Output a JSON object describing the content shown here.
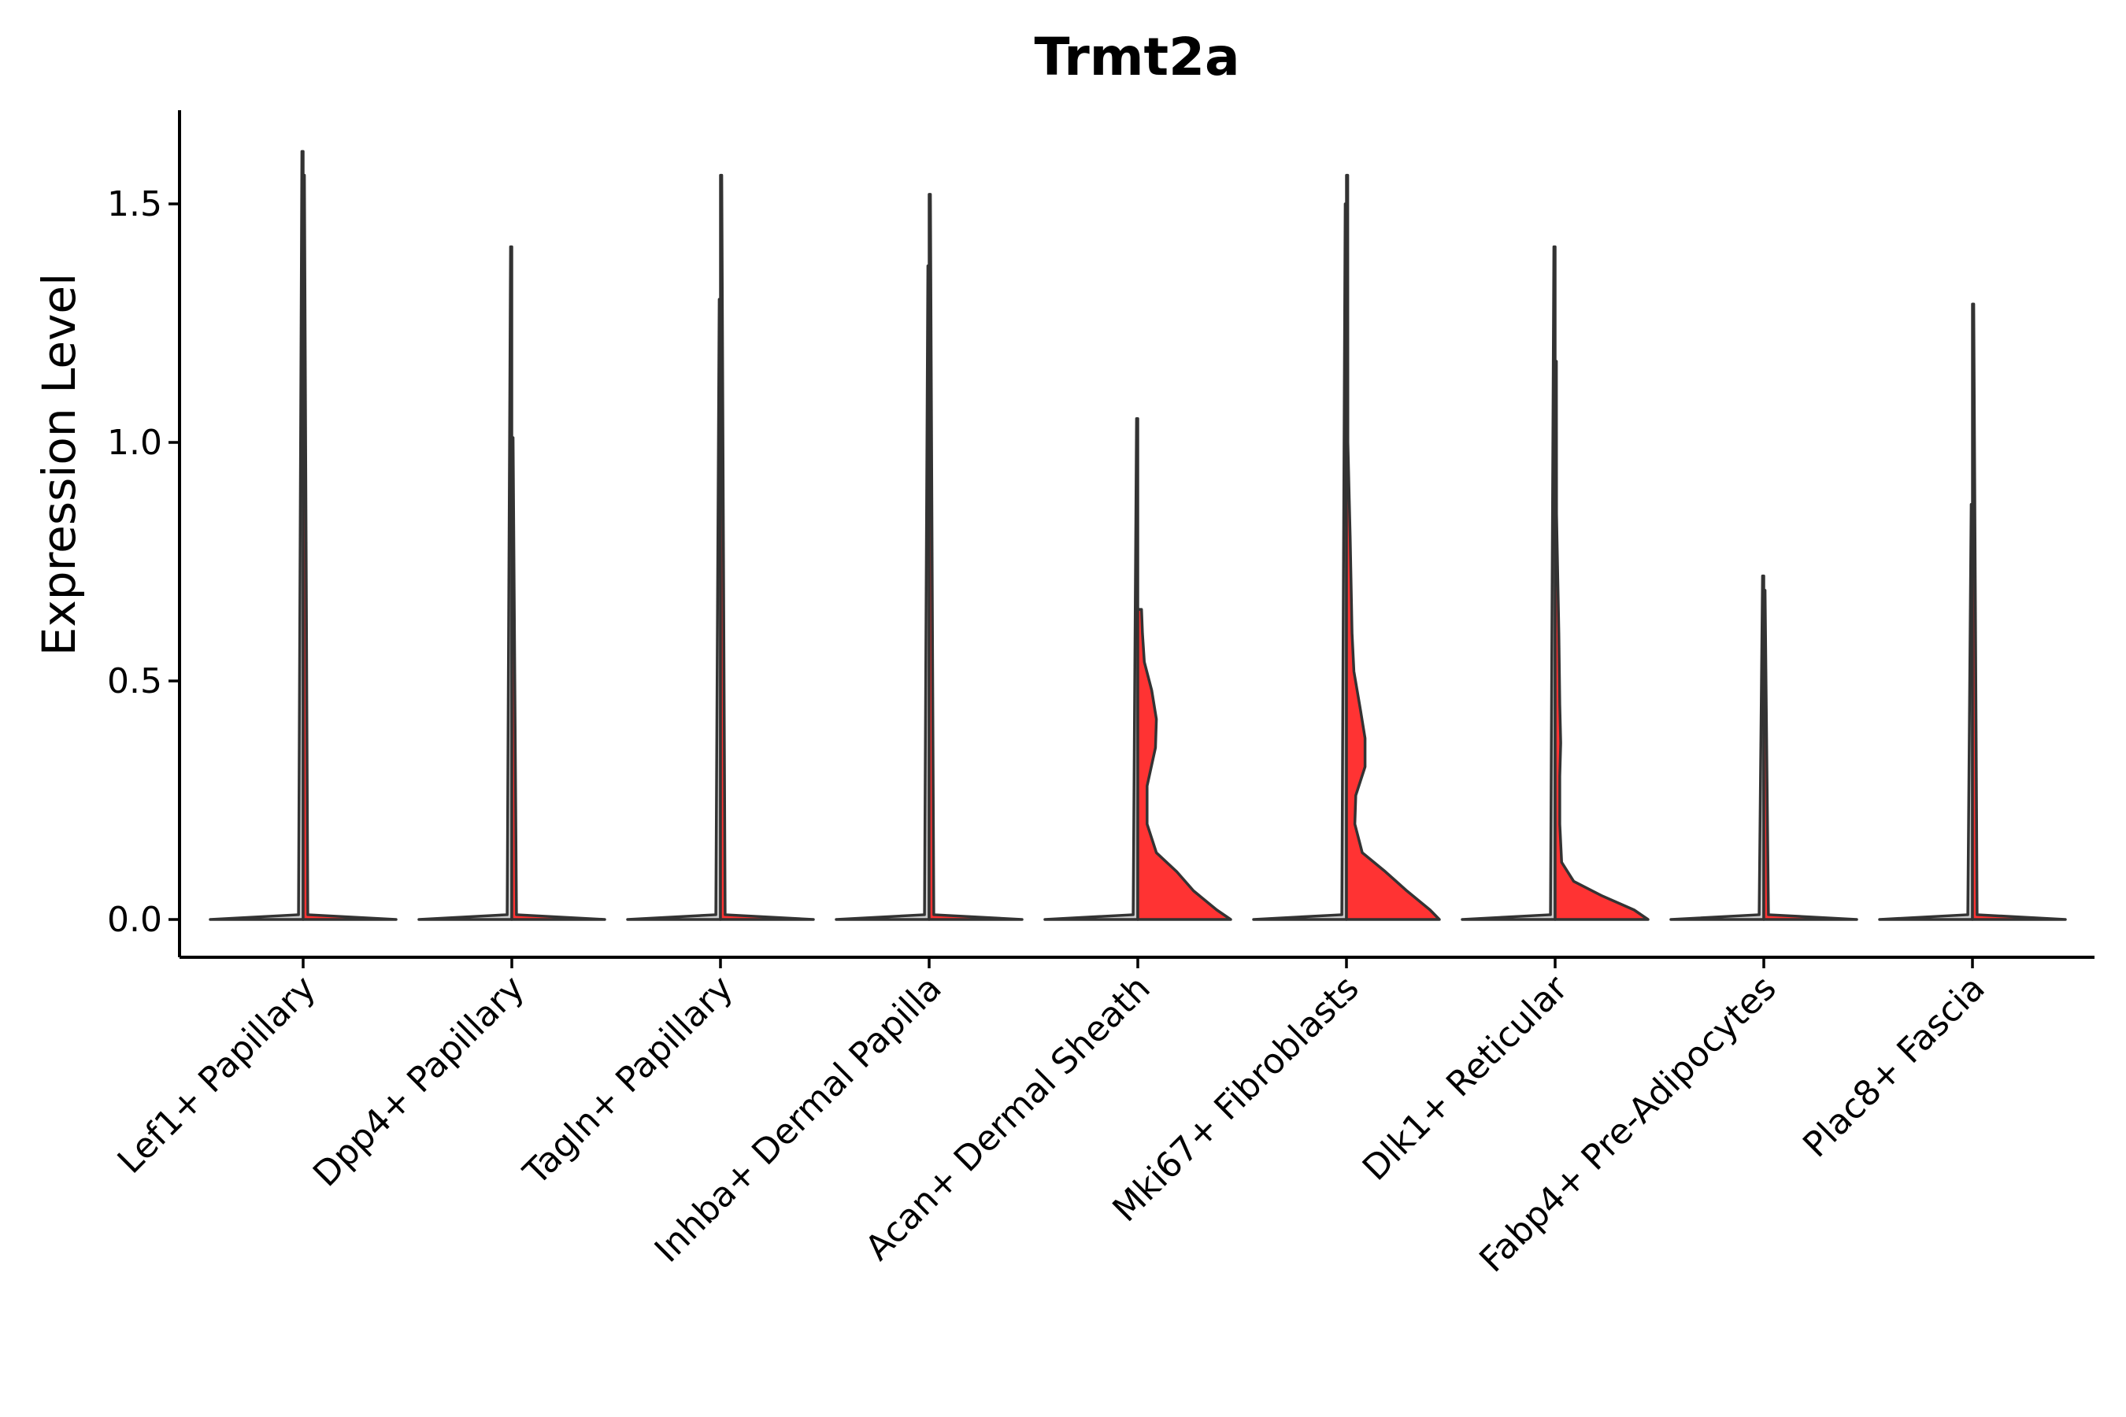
{
  "chart_data": {
    "type": "violin",
    "title": "Trmt2a",
    "ylabel": "Expression Level",
    "xlabel": "",
    "ylim": [
      -0.08,
      1.7
    ],
    "yticks": [
      "0.0",
      "0.5",
      "1.0",
      "1.5"
    ],
    "ytick_values": [
      0.0,
      0.5,
      1.0,
      1.5
    ],
    "fill_color": "#ff3333",
    "line_color": "#333333",
    "categories": [
      "Lef1+ Papillary",
      "Dpp4+ Papillary",
      "Tagln+ Papillary",
      "Inhba+ Dermal Papilla",
      "Acan+ Dermal Sheath",
      "Mki67+ Fibroblasts",
      "Dlk1+ Reticular",
      "Fabp4+ Pre-Adipocytes",
      "Plac8+ Fascia"
    ],
    "series": [
      {
        "name": "left",
        "color": "#cccccc",
        "max": [
          1.61,
          1.41,
          1.3,
          1.37,
          1.05,
          1.5,
          1.41,
          0.72,
          0.87
        ],
        "profile": [
          [
            [
              0,
              1
            ],
            [
              0.01,
              0.05
            ],
            [
              1.61,
              0
            ]
          ],
          [
            [
              0,
              1
            ],
            [
              0.01,
              0.05
            ],
            [
              1.41,
              0
            ]
          ],
          [
            [
              0,
              1
            ],
            [
              0.01,
              0.05
            ],
            [
              1.3,
              0
            ]
          ],
          [
            [
              0,
              1
            ],
            [
              0.01,
              0.05
            ],
            [
              1.37,
              0
            ]
          ],
          [
            [
              0,
              1
            ],
            [
              0.01,
              0.05
            ],
            [
              1.05,
              0
            ]
          ],
          [
            [
              0,
              1
            ],
            [
              0.01,
              0.05
            ],
            [
              1.5,
              0
            ]
          ],
          [
            [
              0,
              1
            ],
            [
              0.01,
              0.05
            ],
            [
              1.41,
              0
            ]
          ],
          [
            [
              0,
              1
            ],
            [
              0.01,
              0.05
            ],
            [
              0.72,
              0
            ]
          ],
          [
            [
              0,
              1
            ],
            [
              0.01,
              0.05
            ],
            [
              0.87,
              0
            ]
          ]
        ]
      },
      {
        "name": "right",
        "color": "#ff3333",
        "max": [
          1.56,
          1.01,
          1.56,
          1.52,
          0.65,
          1.56,
          1.17,
          0.69,
          1.29
        ],
        "profile": [
          [
            [
              0,
              1
            ],
            [
              0.01,
              0.05
            ],
            [
              1.56,
              0
            ]
          ],
          [
            [
              0,
              1
            ],
            [
              0.01,
              0.05
            ],
            [
              1.01,
              0
            ]
          ],
          [
            [
              0,
              1
            ],
            [
              0.01,
              0.05
            ],
            [
              1.56,
              0
            ]
          ],
          [
            [
              0,
              1
            ],
            [
              0.01,
              0.05
            ],
            [
              1.52,
              0
            ]
          ],
          [
            [
              0,
              1
            ],
            [
              0.02,
              0.85
            ],
            [
              0.06,
              0.6
            ],
            [
              0.1,
              0.42
            ],
            [
              0.14,
              0.2
            ],
            [
              0.2,
              0.1
            ],
            [
              0.28,
              0.1
            ],
            [
              0.36,
              0.19
            ],
            [
              0.42,
              0.2
            ],
            [
              0.48,
              0.15
            ],
            [
              0.54,
              0.07
            ],
            [
              0.6,
              0.05
            ],
            [
              0.65,
              0.04
            ]
          ],
          [
            [
              0,
              1
            ],
            [
              0.02,
              0.9
            ],
            [
              0.06,
              0.65
            ],
            [
              0.1,
              0.42
            ],
            [
              0.14,
              0.17
            ],
            [
              0.2,
              0.09
            ],
            [
              0.26,
              0.1
            ],
            [
              0.32,
              0.2
            ],
            [
              0.38,
              0.2
            ],
            [
              0.44,
              0.15
            ],
            [
              0.52,
              0.08
            ],
            [
              0.6,
              0.06
            ],
            [
              0.7,
              0.05
            ],
            [
              0.8,
              0.04
            ],
            [
              1.0,
              0.015
            ],
            [
              1.56,
              0
            ]
          ],
          [
            [
              0,
              1
            ],
            [
              0.02,
              0.85
            ],
            [
              0.05,
              0.5
            ],
            [
              0.08,
              0.2
            ],
            [
              0.12,
              0.07
            ],
            [
              0.2,
              0.05
            ],
            [
              0.3,
              0.05
            ],
            [
              0.37,
              0.06
            ],
            [
              0.45,
              0.05
            ],
            [
              0.6,
              0.04
            ],
            [
              0.7,
              0.03
            ],
            [
              0.85,
              0.015
            ],
            [
              1.17,
              0
            ]
          ],
          [
            [
              0,
              1
            ],
            [
              0.01,
              0.05
            ],
            [
              0.69,
              0
            ]
          ],
          [
            [
              0,
              1
            ],
            [
              0.01,
              0.05
            ],
            [
              1.29,
              0
            ]
          ]
        ]
      }
    ]
  }
}
